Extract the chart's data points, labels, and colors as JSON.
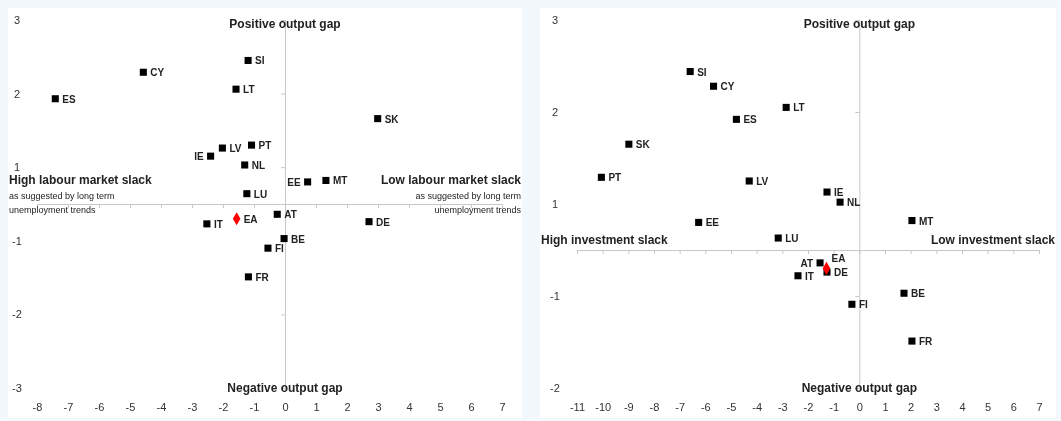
{
  "chart_data": [
    {
      "type": "scatter",
      "xlim": [
        -8,
        7
      ],
      "xticks": [
        -8,
        -7,
        -6,
        -5,
        -4,
        -3,
        -2,
        -1,
        0,
        1,
        2,
        3,
        4,
        5,
        6,
        7
      ],
      "ylim": [
        -2.5,
        2.5
      ],
      "yticks": [
        {
          "value": 2.5,
          "label": "3"
        },
        {
          "value": 1.5,
          "label": "2"
        },
        {
          "value": 0.5,
          "label": "1"
        },
        {
          "value": -0.5,
          "label": "-1"
        },
        {
          "value": -1.5,
          "label": "-2"
        },
        {
          "value": -2.5,
          "label": "-3"
        }
      ],
      "grid": false,
      "series": [
        {
          "color": "#000000",
          "marker": "square",
          "x": [
            -7.41,
            -4.57,
            -1.19,
            -1.58,
            2.99,
            -2.02,
            -1.08,
            -2.4,
            -1.3,
            0.73,
            1.32,
            -1.23,
            -0.25,
            -2.52,
            2.71,
            -0.03,
            -0.55,
            -1.18
          ],
          "values": [
            1.43,
            1.79,
            1.95,
            1.56,
            1.16,
            0.76,
            0.8,
            0.65,
            0.53,
            0.3,
            0.32,
            0.14,
            -0.14,
            -0.27,
            -0.24,
            -0.47,
            -0.6,
            -0.99
          ]
        },
        {
          "color": "#ff0000",
          "marker": "diamond",
          "x": [
            -1.56
          ],
          "values": [
            -0.2
          ]
        }
      ],
      "annotations": [
        "Positive output gap",
        "Negative output gap",
        "High labour market slack",
        "as suggested by long term unemployment trends",
        "Low labour market slack",
        "as suggested by long term unemployment trends",
        {
          "text": "ES",
          "x": -7.41,
          "y": 1.43
        },
        {
          "text": "CY",
          "x": -4.57,
          "y": 1.79
        },
        {
          "text": "SI",
          "x": -1.19,
          "y": 1.95
        },
        {
          "text": "LT",
          "x": -1.58,
          "y": 1.56
        },
        {
          "text": "SK",
          "x": 2.99,
          "y": 1.16
        },
        {
          "text": "LV",
          "x": -2.02,
          "y": 0.76
        },
        {
          "text": "PT",
          "x": -1.08,
          "y": 0.8
        },
        {
          "text": "IE",
          "x": -2.4,
          "y": 0.65
        },
        {
          "text": "NL",
          "x": -1.3,
          "y": 0.53
        },
        {
          "text": "EE",
          "x": 0.73,
          "y": 0.3
        },
        {
          "text": "MT",
          "x": 1.32,
          "y": 0.32
        },
        {
          "text": "LU",
          "x": -1.23,
          "y": 0.14
        },
        {
          "text": "AT",
          "x": -0.25,
          "y": -0.14
        },
        {
          "text": "IT",
          "x": -2.52,
          "y": -0.27
        },
        {
          "text": "DE",
          "x": 2.71,
          "y": -0.24
        },
        {
          "text": "BE",
          "x": -0.03,
          "y": -0.47
        },
        {
          "text": "FI",
          "x": -0.55,
          "y": -0.6
        },
        {
          "text": "FR",
          "x": -1.18,
          "y": -0.99
        },
        {
          "text": "EA",
          "x": -1.56,
          "y": -0.2
        }
      ]
    },
    {
      "type": "scatter",
      "xlim": [
        -11,
        7
      ],
      "xticks": [
        -11,
        -10,
        -9,
        -8,
        -7,
        -6,
        -5,
        -4,
        -3,
        -2,
        -1,
        0,
        1,
        2,
        3,
        4,
        5,
        6,
        7
      ],
      "ylim": [
        -1.5,
        2.5
      ],
      "yticks": [
        {
          "value": 2.5,
          "label": "3"
        },
        {
          "value": 1.5,
          "label": "2"
        },
        {
          "value": 0.5,
          "label": "1"
        },
        {
          "value": -0.5,
          "label": "-1"
        },
        {
          "value": -1.5,
          "label": "-2"
        }
      ],
      "grid": false,
      "series": [
        {
          "color": "#000000",
          "marker": "square",
          "x": [
            -6.59,
            -5.68,
            -2.85,
            -4.79,
            -8.98,
            -10.05,
            -4.29,
            -1.26,
            -0.75,
            -6.26,
            2.05,
            -3.16,
            -1.53,
            -1.26,
            -2.39,
            1.74,
            -0.29,
            2.05
          ],
          "values": [
            1.94,
            1.78,
            1.55,
            1.42,
            1.15,
            0.79,
            0.75,
            0.63,
            0.52,
            0.3,
            0.32,
            0.13,
            -0.14,
            -0.24,
            -0.28,
            -0.47,
            -0.59,
            -0.99
          ]
        },
        {
          "color": "#ff0000",
          "marker": "diamond",
          "x": [
            -1.28
          ],
          "values": [
            -0.2
          ]
        }
      ],
      "annotations": [
        "Positive output gap",
        "Negative output gap",
        "High investment slack",
        "Low investment slack",
        {
          "text": "SI",
          "x": -6.59,
          "y": 1.94
        },
        {
          "text": "CY",
          "x": -5.68,
          "y": 1.78
        },
        {
          "text": "LT",
          "x": -2.85,
          "y": 1.55
        },
        {
          "text": "ES",
          "x": -4.79,
          "y": 1.42
        },
        {
          "text": "SK",
          "x": -8.98,
          "y": 1.15
        },
        {
          "text": "PT",
          "x": -10.05,
          "y": 0.79
        },
        {
          "text": "LV",
          "x": -4.29,
          "y": 0.75
        },
        {
          "text": "IE",
          "x": -1.26,
          "y": 0.63
        },
        {
          "text": "NL",
          "x": -0.75,
          "y": 0.52
        },
        {
          "text": "EE",
          "x": -6.26,
          "y": 0.3
        },
        {
          "text": "MT",
          "x": 2.05,
          "y": 0.32
        },
        {
          "text": "LU",
          "x": -3.16,
          "y": 0.13
        },
        {
          "text": "AT",
          "x": -1.53,
          "y": -0.14
        },
        {
          "text": "DE",
          "x": -1.26,
          "y": -0.24
        },
        {
          "text": "IT",
          "x": -2.39,
          "y": -0.28
        },
        {
          "text": "BE",
          "x": 1.74,
          "y": -0.47
        },
        {
          "text": "FI",
          "x": -0.29,
          "y": -0.59
        },
        {
          "text": "FR",
          "x": 2.05,
          "y": -0.99
        },
        {
          "text": "EA",
          "x": -1.28,
          "y": -0.2
        }
      ]
    }
  ]
}
